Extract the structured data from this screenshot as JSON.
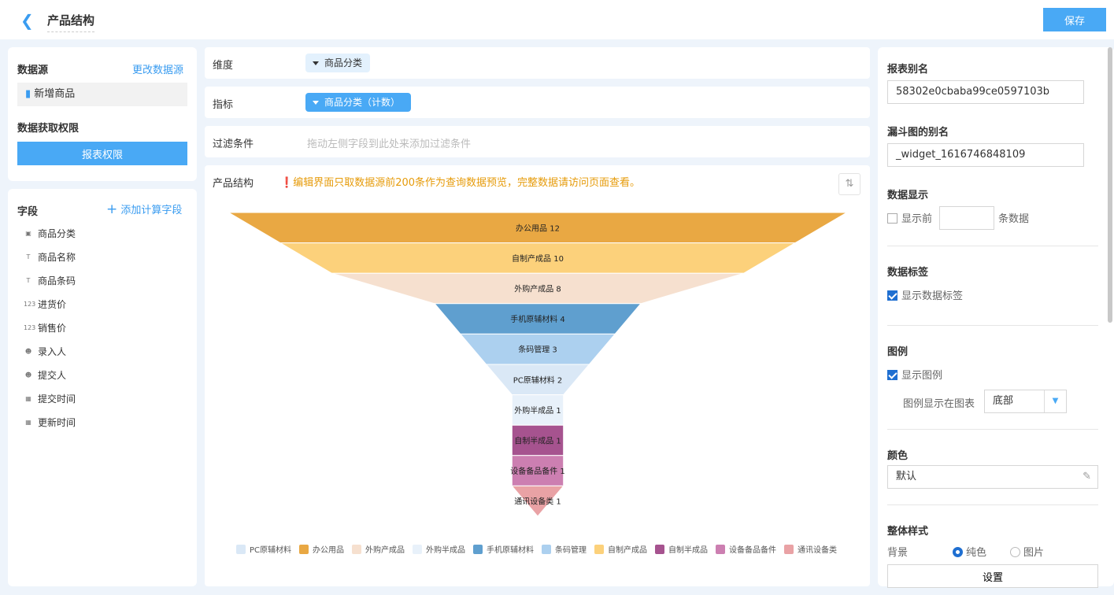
{
  "header": {
    "title": "产品结构",
    "save_label": "保存"
  },
  "left": {
    "datasource_label": "数据源",
    "change_label": "更改数据源",
    "datasource_name": "新增商品",
    "permission_label": "数据获取权限",
    "permission_button": "报表权限",
    "fields_label": "字段",
    "add_field_label": "添加计算字段",
    "fields": [
      {
        "name": "商品分类",
        "icon": "category-icon"
      },
      {
        "name": "商品名称",
        "icon": "text-icon"
      },
      {
        "name": "商品条码",
        "icon": "text-icon"
      },
      {
        "name": "进货价",
        "icon": "number-icon"
      },
      {
        "name": "销售价",
        "icon": "number-icon"
      },
      {
        "name": "录入人",
        "icon": "user-icon"
      },
      {
        "name": "提交人",
        "icon": "user-icon"
      },
      {
        "name": "提交时间",
        "icon": "calendar-icon"
      },
      {
        "name": "更新时间",
        "icon": "calendar-icon"
      }
    ]
  },
  "middle": {
    "dimension_label": "维度",
    "dimension_chip": "商品分类",
    "metric_label": "指标",
    "metric_chip": "商品分类（计数）",
    "filter_label": "过滤条件",
    "filter_placeholder": "拖动左侧字段到此处来添加过滤条件",
    "chart_title": "产品结构",
    "warning": "编辑界面只取数据源前200条作为查询数据预览，完整数据请访问页面查看。"
  },
  "chart_data": {
    "type": "funnel",
    "categories": [
      "办公用品",
      "自制产成品",
      "外购产成品",
      "手机原辅材料",
      "条码管理",
      "PC原辅材料",
      "外购半成品",
      "自制半成品",
      "设备备品备件",
      "通讯设备类"
    ],
    "values": [
      12,
      10,
      8,
      4,
      3,
      2,
      1,
      1,
      1,
      1
    ],
    "colors": [
      "#e9a843",
      "#fcd17b",
      "#f6e0cf",
      "#5f9fcf",
      "#acd0ef",
      "#dae8f6",
      "#e8f1fa",
      "#a6538f",
      "#cc7fb1",
      "#e9a2a5"
    ],
    "legend_position": "bottom",
    "legend": [
      {
        "name": "PC原辅材料",
        "color": "#dae8f6"
      },
      {
        "name": "办公用品",
        "color": "#e9a843"
      },
      {
        "name": "外购产成品",
        "color": "#f6e0cf"
      },
      {
        "name": "外购半成品",
        "color": "#e8f1fa"
      },
      {
        "name": "手机原辅材料",
        "color": "#5f9fcf"
      },
      {
        "name": "条码管理",
        "color": "#acd0ef"
      },
      {
        "name": "自制产成品",
        "color": "#fcd17b"
      },
      {
        "name": "自制半成品",
        "color": "#a6538f"
      },
      {
        "name": "设备备品备件",
        "color": "#cc7fb1"
      },
      {
        "name": "通讯设备类",
        "color": "#e9a2a5"
      }
    ]
  },
  "right": {
    "alias_label": "报表别名",
    "alias_value": "58302e0cbaba99ce0597103b",
    "funnel_alias_label": "漏斗图的别名",
    "funnel_alias_value": "_widget_1616746848109",
    "data_display_label": "数据显示",
    "show_first": "显示前",
    "rows_suffix": "条数据",
    "data_label_label": "数据标签",
    "show_data_label": "显示数据标签",
    "legend_label": "图例",
    "show_legend": "显示图例",
    "legend_pos_label": "图例显示在图表",
    "legend_pos_value": "底部",
    "color_label": "颜色",
    "color_value": "默认",
    "style_label": "整体样式",
    "bg_label": "背景",
    "bg_solid": "纯色",
    "bg_image": "图片",
    "settings_button": "设置"
  }
}
